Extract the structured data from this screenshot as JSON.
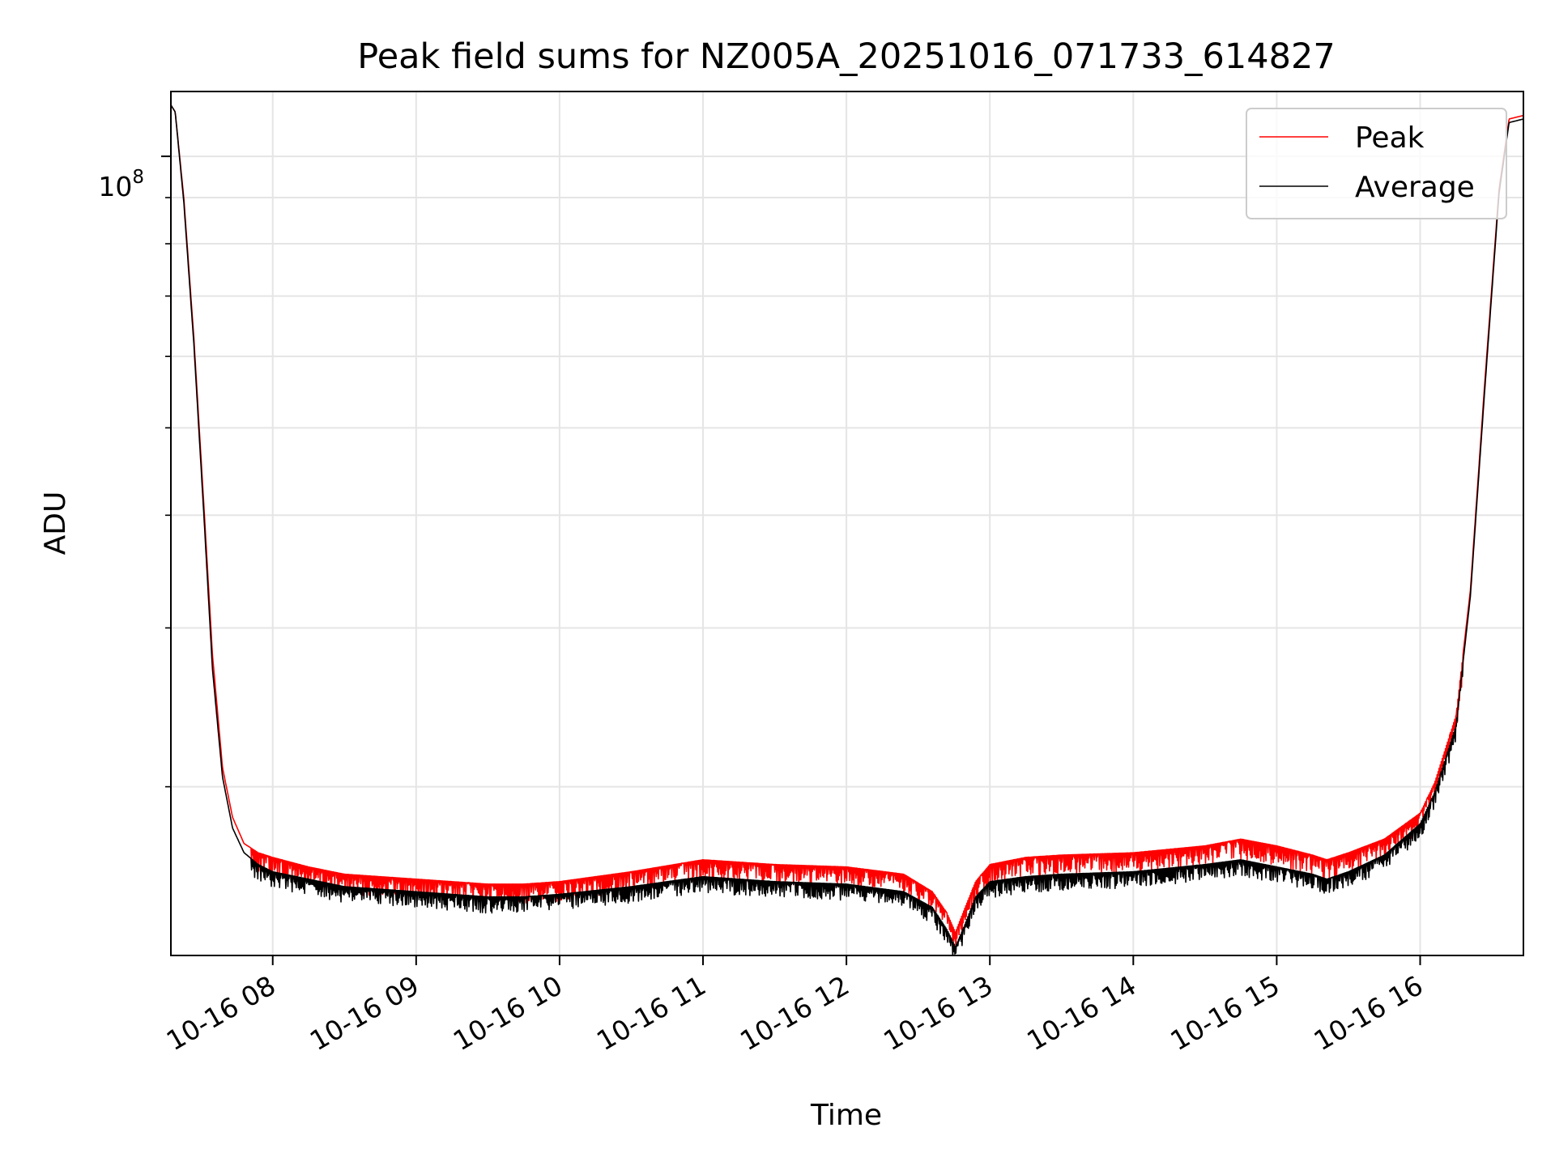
{
  "chart_data": {
    "type": "line",
    "title": "Peak field sums for NZ005A_20251016_071733_614827",
    "xlabel": "Time",
    "ylabel": "ADU",
    "yscale": "log",
    "ylim": [
      13000000,
      118000000
    ],
    "xlim_hours": [
      7.29,
      16.72
    ],
    "y_major_tick": {
      "value": 100000000,
      "label_base": "10",
      "label_exp": "8"
    },
    "y_minor_ticks": [
      20000000,
      30000000,
      40000000,
      50000000,
      60000000,
      70000000,
      80000000,
      90000000
    ],
    "x_ticks": [
      {
        "hour": 8,
        "label": "10-16 08"
      },
      {
        "hour": 9,
        "label": "10-16 09"
      },
      {
        "hour": 10,
        "label": "10-16 10"
      },
      {
        "hour": 11,
        "label": "10-16 11"
      },
      {
        "hour": 12,
        "label": "10-16 12"
      },
      {
        "hour": 13,
        "label": "10-16 13"
      },
      {
        "hour": 14,
        "label": "10-16 14"
      },
      {
        "hour": 15,
        "label": "10-16 15"
      },
      {
        "hour": 16,
        "label": "10-16 16"
      }
    ],
    "grid": true,
    "legend_position": "top-right",
    "series": [
      {
        "name": "Peak",
        "color": "#ff0000",
        "x_hours": [
          7.29,
          7.32,
          7.38,
          7.45,
          7.52,
          7.58,
          7.65,
          7.72,
          7.8,
          7.9,
          8.0,
          8.25,
          8.5,
          9.0,
          9.5,
          9.75,
          10.0,
          10.5,
          11.0,
          11.5,
          12.0,
          12.4,
          12.6,
          12.7,
          12.76,
          12.82,
          12.9,
          13.0,
          13.25,
          13.5,
          14.0,
          14.5,
          14.75,
          15.0,
          15.25,
          15.35,
          15.5,
          15.75,
          16.0,
          16.1,
          16.25,
          16.35,
          16.45,
          16.55,
          16.62,
          16.72
        ],
        "values": [
          114000000,
          112000000,
          90000000,
          63000000,
          41000000,
          28000000,
          21000000,
          18500000,
          17300000,
          16900000,
          16700000,
          16300000,
          16000000,
          15800000,
          15600000,
          15600000,
          15700000,
          16100000,
          16600000,
          16400000,
          16300000,
          16000000,
          15300000,
          14500000,
          13800000,
          14600000,
          15700000,
          16400000,
          16700000,
          16800000,
          16900000,
          17200000,
          17500000,
          17200000,
          16800000,
          16600000,
          16900000,
          17500000,
          18700000,
          20200000,
          24000000,
          33000000,
          56000000,
          92000000,
          110000000,
          111000000
        ]
      },
      {
        "name": "Average",
        "color": "#000000",
        "x_hours": [
          7.29,
          7.32,
          7.38,
          7.45,
          7.52,
          7.58,
          7.65,
          7.72,
          7.8,
          7.9,
          8.0,
          8.25,
          8.5,
          9.0,
          9.5,
          9.75,
          10.0,
          10.5,
          11.0,
          11.5,
          12.0,
          12.4,
          12.6,
          12.7,
          12.76,
          12.82,
          12.9,
          13.0,
          13.25,
          13.5,
          14.0,
          14.5,
          14.75,
          15.0,
          15.25,
          15.35,
          15.5,
          15.75,
          16.0,
          16.1,
          16.25,
          16.35,
          16.45,
          16.55,
          16.62,
          16.72
        ],
        "values": [
          114000000,
          112000000,
          89000000,
          62000000,
          40000000,
          27000000,
          20500000,
          18000000,
          16900000,
          16400000,
          16100000,
          15800000,
          15500000,
          15300000,
          15100000,
          15100000,
          15200000,
          15500000,
          15900000,
          15700000,
          15600000,
          15300000,
          14700000,
          13900000,
          13300000,
          14000000,
          15100000,
          15700000,
          15900000,
          16000000,
          16100000,
          16400000,
          16600000,
          16300000,
          16000000,
          15800000,
          16100000,
          16800000,
          18200000,
          19700000,
          23400000,
          32500000,
          55000000,
          91000000,
          109000000,
          110000000
        ]
      }
    ]
  }
}
